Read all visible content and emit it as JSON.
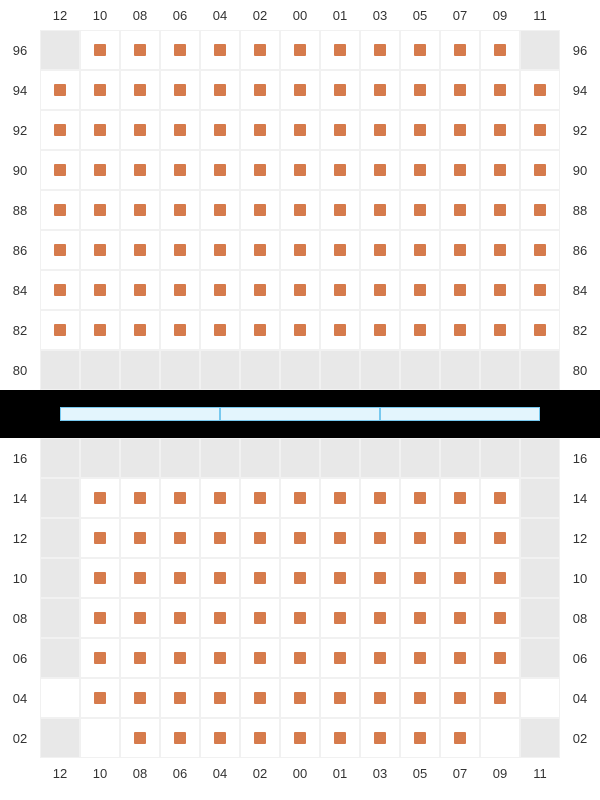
{
  "colors": {
    "marker": "#d67b4c",
    "emptyCell": "#e8e8e8",
    "cellBorder": "#f1f1f1",
    "dividerBg": "#000000",
    "screenFill": "#e3f5fd",
    "screenBorder": "#78c9ef",
    "labelText": "#333333"
  },
  "layout": {
    "cellSize": 40,
    "markerSize": 12,
    "labelFontSize": 13,
    "screenSegments": 3
  },
  "columnLabels": [
    "12",
    "10",
    "08",
    "06",
    "04",
    "02",
    "00",
    "01",
    "03",
    "05",
    "07",
    "09",
    "11"
  ],
  "upperSection": {
    "rowLabels": [
      "96",
      "94",
      "92",
      "90",
      "88",
      "86",
      "84",
      "82",
      "80"
    ],
    "rows": [
      {
        "label": "96",
        "cells": [
          "empty",
          "marker",
          "marker",
          "marker",
          "marker",
          "marker",
          "marker",
          "marker",
          "marker",
          "marker",
          "marker",
          "marker",
          "empty"
        ]
      },
      {
        "label": "94",
        "cells": [
          "marker",
          "marker",
          "marker",
          "marker",
          "marker",
          "marker",
          "marker",
          "marker",
          "marker",
          "marker",
          "marker",
          "marker",
          "marker"
        ]
      },
      {
        "label": "92",
        "cells": [
          "marker",
          "marker",
          "marker",
          "marker",
          "marker",
          "marker",
          "marker",
          "marker",
          "marker",
          "marker",
          "marker",
          "marker",
          "marker"
        ]
      },
      {
        "label": "90",
        "cells": [
          "marker",
          "marker",
          "marker",
          "marker",
          "marker",
          "marker",
          "marker",
          "marker",
          "marker",
          "marker",
          "marker",
          "marker",
          "marker"
        ]
      },
      {
        "label": "88",
        "cells": [
          "marker",
          "marker",
          "marker",
          "marker",
          "marker",
          "marker",
          "marker",
          "marker",
          "marker",
          "marker",
          "marker",
          "marker",
          "marker"
        ]
      },
      {
        "label": "86",
        "cells": [
          "marker",
          "marker",
          "marker",
          "marker",
          "marker",
          "marker",
          "marker",
          "marker",
          "marker",
          "marker",
          "marker",
          "marker",
          "marker"
        ]
      },
      {
        "label": "84",
        "cells": [
          "marker",
          "marker",
          "marker",
          "marker",
          "marker",
          "marker",
          "marker",
          "marker",
          "marker",
          "marker",
          "marker",
          "marker",
          "marker"
        ]
      },
      {
        "label": "82",
        "cells": [
          "marker",
          "marker",
          "marker",
          "marker",
          "marker",
          "marker",
          "marker",
          "marker",
          "marker",
          "marker",
          "marker",
          "marker",
          "marker"
        ]
      },
      {
        "label": "80",
        "cells": [
          "empty",
          "empty",
          "empty",
          "empty",
          "empty",
          "empty",
          "empty",
          "empty",
          "empty",
          "empty",
          "empty",
          "empty",
          "empty"
        ]
      }
    ]
  },
  "lowerSection": {
    "rowLabels": [
      "16",
      "14",
      "12",
      "10",
      "08",
      "06",
      "04",
      "02"
    ],
    "rows": [
      {
        "label": "16",
        "cells": [
          "empty",
          "empty",
          "empty",
          "empty",
          "empty",
          "empty",
          "empty",
          "empty",
          "empty",
          "empty",
          "empty",
          "empty",
          "empty"
        ]
      },
      {
        "label": "14",
        "cells": [
          "empty",
          "marker",
          "marker",
          "marker",
          "marker",
          "marker",
          "marker",
          "marker",
          "marker",
          "marker",
          "marker",
          "marker",
          "empty"
        ]
      },
      {
        "label": "12",
        "cells": [
          "empty",
          "marker",
          "marker",
          "marker",
          "marker",
          "marker",
          "marker",
          "marker",
          "marker",
          "marker",
          "marker",
          "marker",
          "empty"
        ]
      },
      {
        "label": "10",
        "cells": [
          "empty",
          "marker",
          "marker",
          "marker",
          "marker",
          "marker",
          "marker",
          "marker",
          "marker",
          "marker",
          "marker",
          "marker",
          "empty"
        ]
      },
      {
        "label": "08",
        "cells": [
          "empty",
          "marker",
          "marker",
          "marker",
          "marker",
          "marker",
          "marker",
          "marker",
          "marker",
          "marker",
          "marker",
          "marker",
          "empty"
        ]
      },
      {
        "label": "06",
        "cells": [
          "empty",
          "marker",
          "marker",
          "marker",
          "marker",
          "marker",
          "marker",
          "marker",
          "marker",
          "marker",
          "marker",
          "marker",
          "empty"
        ]
      },
      {
        "label": "04",
        "cells": [
          "blank",
          "marker",
          "marker",
          "marker",
          "marker",
          "marker",
          "marker",
          "marker",
          "marker",
          "marker",
          "marker",
          "marker",
          "blank"
        ]
      },
      {
        "label": "02",
        "cells": [
          "empty",
          "blank",
          "marker",
          "marker",
          "marker",
          "marker",
          "marker",
          "marker",
          "marker",
          "marker",
          "marker",
          "blank",
          "empty"
        ]
      }
    ]
  }
}
